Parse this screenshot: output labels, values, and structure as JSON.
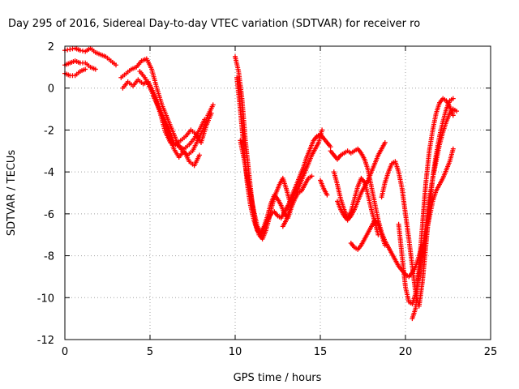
{
  "chart_data": {
    "type": "scatter",
    "title": "Day 295 of 2016, Sidereal Day-to-day VTEC variation (SDTVAR) for receiver ro",
    "xlabel": "GPS time / hours",
    "ylabel": "SDTVAR / TECUs",
    "xlim": [
      0,
      25
    ],
    "ylim": [
      -12,
      2
    ],
    "xticks": [
      0,
      5,
      10,
      15,
      20,
      25
    ],
    "yticks": [
      2,
      0,
      -2,
      -4,
      -6,
      -8,
      -10,
      -12
    ],
    "grid": true,
    "marker": "plus",
    "color": "#ff0000",
    "series": [
      {
        "x": [
          0.0,
          0.3,
          0.6,
          0.9,
          1.2,
          1.5,
          1.8,
          2.1,
          2.4,
          2.7,
          3.0
        ],
        "y": [
          1.8,
          1.85,
          1.9,
          1.8,
          1.75,
          1.9,
          1.7,
          1.6,
          1.5,
          1.3,
          1.1
        ]
      },
      {
        "x": [
          0.0,
          0.3,
          0.6,
          0.9,
          1.2,
          1.5,
          1.8
        ],
        "y": [
          1.1,
          1.2,
          1.3,
          1.2,
          1.2,
          1.0,
          0.9
        ]
      },
      {
        "x": [
          0.0,
          0.3,
          0.6,
          0.9,
          1.2
        ],
        "y": [
          0.7,
          0.6,
          0.6,
          0.8,
          0.9
        ]
      },
      {
        "x": [
          3.3,
          3.6,
          3.9,
          4.2,
          4.5,
          4.8,
          5.1,
          5.4,
          5.7,
          6.0,
          6.3,
          6.6,
          6.9,
          7.2,
          7.5,
          7.8,
          8.1,
          8.4,
          8.7
        ],
        "y": [
          0.5,
          0.7,
          0.9,
          1.0,
          1.3,
          1.4,
          0.9,
          0.0,
          -0.8,
          -1.4,
          -2.0,
          -2.6,
          -3.0,
          -3.2,
          -3.0,
          -2.5,
          -2.0,
          -1.3,
          -0.8
        ]
      },
      {
        "x": [
          3.4,
          3.7,
          4.0,
          4.3,
          4.6,
          4.9,
          5.2,
          5.5,
          5.8,
          6.1,
          6.4,
          6.7,
          7.0,
          7.3,
          7.6,
          7.9
        ],
        "y": [
          0.0,
          0.3,
          0.1,
          0.4,
          0.2,
          0.3,
          -0.2,
          -0.8,
          -1.5,
          -2.3,
          -2.9,
          -3.3,
          -3.0,
          -3.5,
          -3.7,
          -3.2
        ]
      },
      {
        "x": [
          4.4,
          4.7,
          5.0,
          5.3,
          5.6,
          5.9,
          6.2,
          6.5,
          6.8,
          7.1,
          7.4,
          7.7,
          8.0,
          8.3,
          8.6
        ],
        "y": [
          0.8,
          0.5,
          0.0,
          -0.5,
          -1.2,
          -2.1,
          -2.6,
          -2.7,
          -2.5,
          -2.3,
          -2.0,
          -2.2,
          -2.6,
          -1.8,
          -1.2
        ]
      },
      {
        "x": [
          5.2,
          5.5,
          5.8,
          6.1,
          6.4,
          6.7,
          7.0,
          7.3,
          7.6,
          7.9,
          8.2
        ],
        "y": [
          -0.4,
          -0.9,
          -1.4,
          -1.9,
          -2.6,
          -2.8,
          -2.9,
          -2.7,
          -2.4,
          -2.0,
          -1.5
        ]
      },
      {
        "x": [
          10.0,
          10.2,
          10.4,
          10.6,
          10.8,
          11.0,
          11.2,
          11.4,
          11.6,
          11.8,
          12.0,
          12.2,
          12.4,
          12.6,
          12.8,
          13.0,
          13.2,
          13.4,
          13.6,
          13.8,
          14.0,
          14.2,
          14.4,
          14.6,
          14.8,
          15.0,
          15.2,
          15.4,
          15.6
        ],
        "y": [
          1.5,
          0.8,
          -0.5,
          -2.5,
          -4.0,
          -5.5,
          -6.5,
          -7.0,
          -7.2,
          -6.8,
          -6.2,
          -5.5,
          -5.0,
          -4.6,
          -4.3,
          -4.8,
          -5.4,
          -5.0,
          -4.6,
          -4.2,
          -3.8,
          -3.3,
          -2.9,
          -2.5,
          -2.3,
          -2.2,
          -2.4,
          -2.6,
          -2.8
        ]
      },
      {
        "x": [
          10.1,
          10.3,
          10.5,
          10.7,
          10.9,
          11.1,
          11.3,
          11.5,
          11.7,
          11.9,
          12.1,
          12.3,
          12.5,
          12.7,
          12.9,
          13.1,
          13.3,
          13.5,
          13.7,
          13.9,
          14.1,
          14.3,
          14.5,
          14.7,
          14.9,
          15.1
        ],
        "y": [
          0.5,
          -1.0,
          -2.8,
          -4.5,
          -5.6,
          -6.3,
          -6.8,
          -7.0,
          -6.7,
          -6.3,
          -6.0,
          -5.9,
          -6.1,
          -6.2,
          -5.9,
          -5.6,
          -5.3,
          -5.0,
          -4.8,
          -4.4,
          -4.0,
          -3.6,
          -3.2,
          -2.9,
          -2.6,
          -2.0
        ]
      },
      {
        "x": [
          10.3,
          10.5,
          10.7,
          10.9,
          11.1,
          11.3,
          11.5,
          11.7,
          11.9,
          12.1,
          12.3,
          12.5,
          12.7,
          12.9,
          13.1,
          13.3,
          13.5,
          13.7,
          13.9,
          14.1,
          14.3,
          14.5
        ],
        "y": [
          -2.5,
          -3.3,
          -4.2,
          -5.0,
          -5.9,
          -6.6,
          -6.9,
          -6.6,
          -6.1,
          -5.5,
          -5.1,
          -5.3,
          -5.6,
          -6.0,
          -6.2,
          -5.7,
          -5.3,
          -5.0,
          -4.9,
          -4.6,
          -4.3,
          -4.2
        ]
      },
      {
        "x": [
          12.8,
          13.0,
          13.2,
          13.4,
          13.6
        ],
        "y": [
          -6.6,
          -6.3,
          -5.8,
          -5.3,
          -4.8
        ]
      },
      {
        "x": [
          15.0,
          15.2,
          15.4
        ],
        "y": [
          -4.4,
          -4.8,
          -5.1
        ]
      },
      {
        "x": [
          15.6,
          15.8,
          16.0,
          16.2,
          16.4,
          16.6,
          16.8,
          17.0,
          17.2,
          17.4,
          17.6,
          17.8,
          18.0,
          18.2,
          18.4,
          18.6,
          18.8,
          19.0,
          19.2,
          19.4,
          19.6,
          19.8,
          20.0,
          20.2,
          20.4,
          20.6,
          20.8,
          21.0
        ],
        "y": [
          -3.0,
          -3.2,
          -3.4,
          -3.2,
          -3.1,
          -3.0,
          -3.1,
          -3.0,
          -2.9,
          -3.1,
          -3.4,
          -3.9,
          -4.7,
          -5.5,
          -6.3,
          -6.9,
          -7.3,
          -7.6,
          -7.9,
          -8.2,
          -8.5,
          -8.7,
          -8.9,
          -9.0,
          -8.8,
          -8.5,
          -8.0,
          -7.5
        ]
      },
      {
        "x": [
          15.8,
          16.0,
          16.2,
          16.4,
          16.6,
          16.8,
          17.0,
          17.2,
          17.4,
          17.6,
          17.8,
          18.0,
          18.2,
          18.4
        ],
        "y": [
          -4.0,
          -4.6,
          -5.3,
          -5.8,
          -6.2,
          -5.9,
          -5.3,
          -4.7,
          -4.3,
          -4.5,
          -5.1,
          -5.8,
          -6.4,
          -7.0
        ]
      },
      {
        "x": [
          16.0,
          16.2,
          16.4,
          16.6,
          16.8,
          17.0,
          17.2,
          17.4,
          17.6,
          17.8,
          18.0,
          18.2,
          18.4,
          18.6,
          18.8
        ],
        "y": [
          -5.4,
          -5.8,
          -6.1,
          -6.3,
          -6.1,
          -5.8,
          -5.4,
          -5.0,
          -4.7,
          -4.4,
          -4.0,
          -3.6,
          -3.2,
          -2.9,
          -2.6
        ]
      },
      {
        "x": [
          16.8,
          17.0,
          17.2,
          17.4,
          17.6,
          17.8,
          18.0,
          18.2,
          18.4,
          18.6,
          18.8
        ],
        "y": [
          -7.4,
          -7.6,
          -7.7,
          -7.5,
          -7.2,
          -6.9,
          -6.6,
          -6.3,
          -6.5,
          -7.0,
          -7.5
        ]
      },
      {
        "x": [
          18.6,
          18.8,
          19.0,
          19.2,
          19.4,
          19.6,
          19.8,
          20.0,
          20.2,
          20.4,
          20.6,
          20.8,
          21.0,
          21.2,
          21.4,
          21.6,
          21.8,
          22.0,
          22.2,
          22.4,
          22.6,
          22.8
        ],
        "y": [
          -5.2,
          -4.5,
          -4.0,
          -3.6,
          -3.5,
          -4.0,
          -4.8,
          -6.0,
          -7.2,
          -8.5,
          -9.8,
          -10.4,
          -9.2,
          -7.5,
          -5.8,
          -4.3,
          -3.2,
          -2.3,
          -1.6,
          -1.0,
          -0.6,
          -0.5
        ]
      },
      {
        "x": [
          19.6,
          19.8,
          20.0,
          20.2,
          20.4,
          20.6,
          20.8,
          21.0,
          21.2,
          21.4,
          21.6,
          21.8,
          22.0,
          22.2,
          22.4,
          22.6,
          22.8,
          23.0
        ],
        "y": [
          -6.5,
          -8.0,
          -9.5,
          -10.2,
          -10.3,
          -9.8,
          -8.9,
          -7.8,
          -6.5,
          -5.3,
          -4.3,
          -3.5,
          -2.7,
          -2.1,
          -1.6,
          -1.2,
          -1.0,
          -1.1
        ]
      },
      {
        "x": [
          20.4,
          20.6,
          20.8,
          21.0,
          21.2,
          21.4,
          21.6,
          21.8,
          22.0,
          22.2,
          22.4,
          22.6,
          22.8
        ],
        "y": [
          -11.0,
          -10.5,
          -8.5,
          -6.5,
          -4.5,
          -3.0,
          -2.0,
          -1.2,
          -0.7,
          -0.5,
          -0.6,
          -0.9,
          -1.3
        ]
      },
      {
        "x": [
          20.8,
          21.0,
          21.2,
          21.4,
          21.6,
          21.8,
          22.0,
          22.2,
          22.4,
          22.6,
          22.8
        ],
        "y": [
          -8.4,
          -7.8,
          -7.0,
          -6.2,
          -5.4,
          -4.9,
          -4.6,
          -4.3,
          -3.9,
          -3.5,
          -2.9
        ]
      }
    ]
  }
}
